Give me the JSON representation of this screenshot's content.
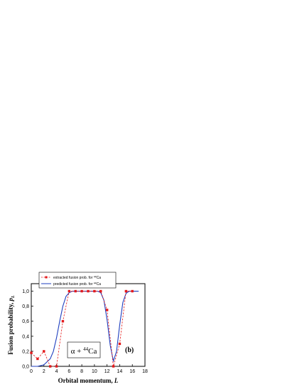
{
  "chart_data": {
    "type": "line",
    "xlabel": "Orbital momentum, L",
    "ylabel": "Fusion probability, p_L",
    "xlim": [
      0,
      18
    ],
    "ylim": [
      0,
      1.1
    ],
    "x_ticks": [
      "0",
      "2",
      "4",
      "6",
      "8",
      "10",
      "12",
      "14",
      "16",
      "18"
    ],
    "y_ticks": [
      "0,0",
      "0,2",
      "0,4",
      "0,6",
      "0,8",
      "1,0"
    ],
    "series": [
      {
        "name": "extracted fusion prob. for 44Ca",
        "style": "dashed-with-squares",
        "color": "#e41a1c",
        "x": [
          0,
          1,
          2,
          3,
          4,
          5,
          6,
          7,
          8,
          9,
          10,
          11,
          12,
          13,
          14,
          15,
          16
        ],
        "y": [
          0.18,
          0.1,
          0.2,
          0.0,
          0.0,
          0.6,
          1.0,
          1.0,
          1.0,
          1.0,
          1.0,
          1.0,
          0.75,
          0.0,
          0.3,
          1.0,
          1.0
        ]
      },
      {
        "name": "predicted fusion prob. for 44Ca",
        "style": "solid",
        "color": "#1f3fbf",
        "x": [
          0,
          1,
          2,
          3,
          3.5,
          4,
          4.5,
          5,
          5.5,
          6,
          6.5,
          7,
          8,
          9,
          10,
          10.5,
          11,
          11.5,
          12,
          12.5,
          13,
          13.5,
          14,
          14.5,
          15,
          15.5,
          16,
          17
        ],
        "y": [
          0.0,
          0.0,
          0.02,
          0.1,
          0.2,
          0.38,
          0.6,
          0.8,
          0.93,
          0.98,
          1.0,
          1.0,
          1.0,
          1.0,
          1.0,
          1.0,
          0.98,
          0.88,
          0.62,
          0.28,
          0.07,
          0.2,
          0.55,
          0.85,
          0.97,
          1.0,
          1.0,
          1.0
        ]
      }
    ],
    "legend": {
      "placement": "top",
      "entries": [
        {
          "prefix": "extracted fusion prob. for ",
          "sup": "44",
          "suffix": "Ca"
        },
        {
          "prefix": "predicted fusion prob. for ",
          "sup": "44",
          "suffix": "Ca"
        }
      ]
    },
    "annotations": {
      "reaction": {
        "prefix": "α + ",
        "sup": "44",
        "suffix": "Ca"
      },
      "panel": "(b)"
    }
  }
}
